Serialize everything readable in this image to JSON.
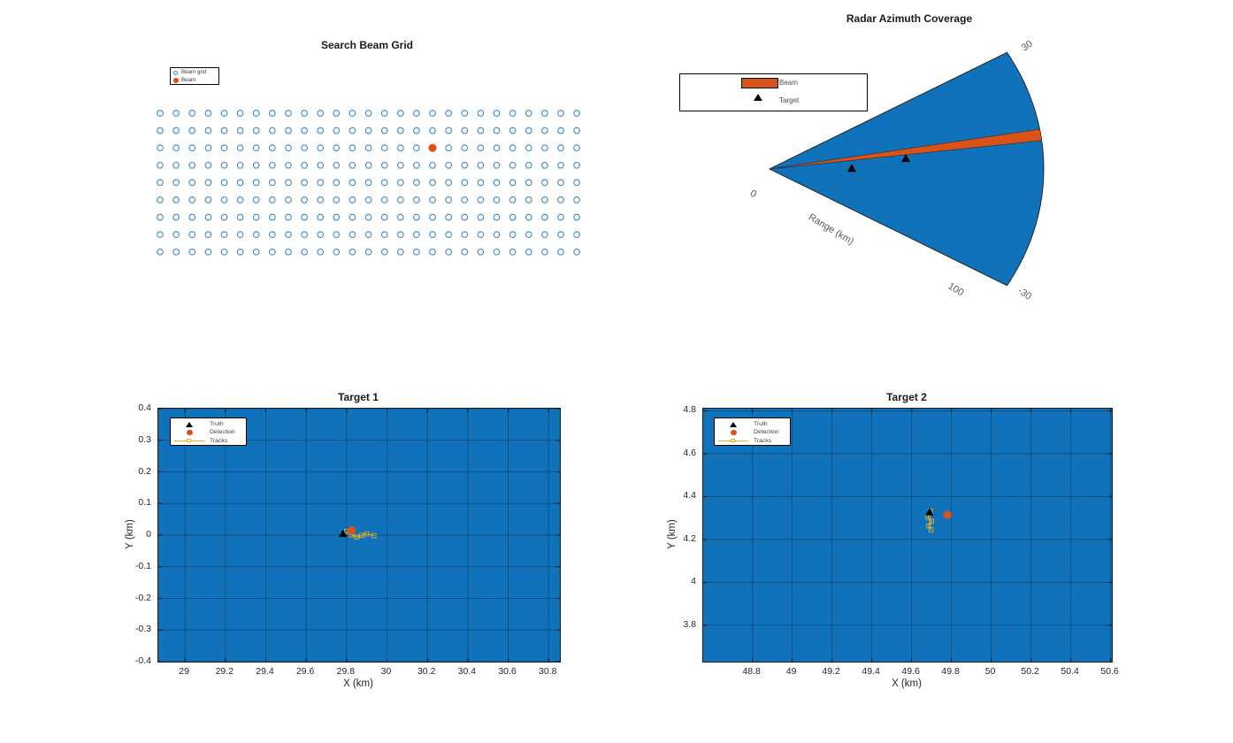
{
  "figure": {
    "background": "#ffffff"
  },
  "colors": {
    "area_blue": "#1072BA",
    "edge_dark": "#1a1a1a",
    "grid_circle_blue": "#3E86C6",
    "orange": "#D95319",
    "track_yellow": "#EDB120",
    "tick_text": "#262626",
    "radar_label_gray": "#595959",
    "gridline": "rgba(0,0,0,0.28)"
  },
  "chart_data": [
    {
      "type": "scatter",
      "title": "Search Beam Grid",
      "legend": [
        "Beam grid",
        "Beam"
      ],
      "grid": {
        "cols": 27,
        "rows": 9
      },
      "beam_cell": {
        "row": 3,
        "col": 18
      },
      "axes_visible": false
    },
    {
      "type": "polar-sector",
      "title": "Radar Azimuth Coverage",
      "legend": [
        "Beam",
        "Target"
      ],
      "azimuth_limits_deg": [
        -30,
        30
      ],
      "range_limits_km": [
        0,
        100
      ],
      "angle_tick_labels": [
        "30",
        "-30"
      ],
      "range_tick_labels": [
        "0",
        "100"
      ],
      "axis_label": "Range (km)",
      "beam": {
        "azimuth_deg": 8.4,
        "width_deg": 2.8
      },
      "targets": [
        {
          "range_km": 30,
          "azimuth_deg": 0.2
        },
        {
          "range_km": 49.9,
          "azimuth_deg": 4.97
        }
      ]
    },
    {
      "type": "scatter",
      "title": "Target 1",
      "xlabel": "X (km)",
      "ylabel": "Y (km)",
      "xlim": [
        28.868,
        30.856
      ],
      "ylim": [
        -0.4,
        0.4
      ],
      "xticks": [
        29,
        29.2,
        29.4,
        29.6,
        29.8,
        30,
        30.2,
        30.4,
        30.6,
        30.8
      ],
      "yticks": [
        0.4,
        0.3,
        0.2,
        0.1,
        0,
        -0.1,
        -0.2,
        -0.3,
        -0.4
      ],
      "legend": [
        "Truth",
        "Detection",
        "Tracks"
      ],
      "grid_on": true,
      "series": [
        {
          "name": "Truth",
          "marker": "triangle",
          "points": [
            [
              29.782,
              0.004
            ]
          ]
        },
        {
          "name": "Detection",
          "marker": "circle",
          "points": [
            [
              29.825,
              0.015
            ]
          ]
        },
        {
          "name": "Tracks",
          "marker": "line-square",
          "points": [
            [
              29.8,
              0.012
            ],
            [
              29.825,
              0.001
            ],
            [
              29.85,
              -0.006
            ],
            [
              29.875,
              -0.001
            ],
            [
              29.9,
              0.004
            ],
            [
              29.935,
              -0.002
            ]
          ]
        }
      ]
    },
    {
      "type": "scatter",
      "title": "Target 2",
      "xlabel": "X (km)",
      "ylabel": "Y (km)",
      "xlim": [
        48.553,
        50.606
      ],
      "ylim": [
        3.63,
        4.81
      ],
      "xticks": [
        48.8,
        49,
        49.2,
        49.4,
        49.6,
        49.8,
        50,
        50.2,
        50.4,
        50.6
      ],
      "yticks": [
        4.8,
        4.6,
        4.4,
        4.2,
        4,
        3.8
      ],
      "legend": [
        "Truth",
        "Detection",
        "Tracks"
      ],
      "grid_on": true,
      "series": [
        {
          "name": "Truth",
          "marker": "triangle",
          "points": [
            [
              49.69,
              4.327
            ]
          ]
        },
        {
          "name": "Detection",
          "marker": "circle",
          "points": [
            [
              49.78,
              4.315
            ]
          ]
        },
        {
          "name": "Tracks",
          "marker": "line-square",
          "points": [
            [
              49.695,
              4.332
            ],
            [
              49.682,
              4.303
            ],
            [
              49.7,
              4.285
            ],
            [
              49.686,
              4.263
            ],
            [
              49.698,
              4.245
            ]
          ]
        }
      ]
    }
  ]
}
